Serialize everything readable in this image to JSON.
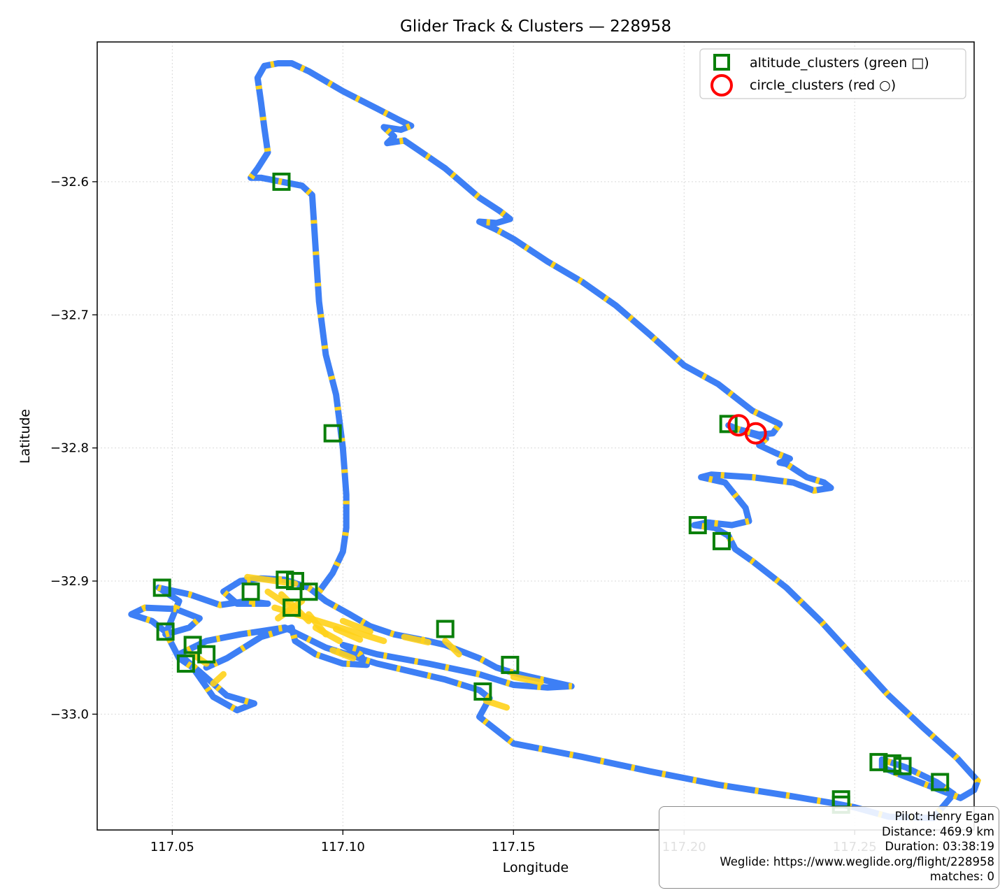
{
  "chart_data": {
    "type": "scatter",
    "title": "Glider Track & Clusters — 228958",
    "xlabel": "Longitude",
    "ylabel": "Latitude",
    "xlim": [
      117.028,
      117.285
    ],
    "ylim": [
      -33.087,
      -32.495
    ],
    "x_ticks": [
      117.05,
      117.1,
      117.15,
      117.2,
      117.25
    ],
    "x_tick_labels": [
      "117.05",
      "117.10",
      "117.15",
      "117.20",
      "117.25"
    ],
    "y_ticks": [
      -32.6,
      -32.7,
      -32.8,
      -32.9,
      -33.0
    ],
    "y_tick_labels": [
      "−32.6",
      "−32.7",
      "−32.8",
      "−32.9",
      "−33.0"
    ],
    "grid": true,
    "legend_position": "top-right",
    "track_colors": {
      "cruise": "#3d7ff5",
      "climb": "#ffd21a"
    },
    "track": [
      [
        117.093,
        -32.908
      ],
      [
        117.097,
        -32.894
      ],
      [
        117.1,
        -32.878
      ],
      [
        117.101,
        -32.86
      ],
      [
        117.101,
        -32.835
      ],
      [
        117.1,
        -32.8
      ],
      [
        117.098,
        -32.76
      ],
      [
        117.095,
        -32.73
      ],
      [
        117.093,
        -32.69
      ],
      [
        117.092,
        -32.65
      ],
      [
        117.091,
        -32.61
      ],
      [
        117.088,
        -32.603
      ],
      [
        117.082,
        -32.6
      ],
      [
        117.076,
        -32.597
      ],
      [
        117.073,
        -32.597
      ],
      [
        117.075,
        -32.59
      ],
      [
        117.078,
        -32.578
      ],
      [
        117.077,
        -32.56
      ],
      [
        117.076,
        -32.54
      ],
      [
        117.075,
        -32.522
      ],
      [
        117.077,
        -32.513
      ],
      [
        117.081,
        -32.511
      ],
      [
        117.085,
        -32.511
      ],
      [
        117.09,
        -32.517
      ],
      [
        117.1,
        -32.532
      ],
      [
        117.11,
        -32.545
      ],
      [
        117.116,
        -32.553
      ],
      [
        117.12,
        -32.558
      ],
      [
        117.117,
        -32.561
      ],
      [
        117.112,
        -32.559
      ],
      [
        117.115,
        -32.566
      ],
      [
        117.113,
        -32.571
      ],
      [
        117.118,
        -32.569
      ],
      [
        117.122,
        -32.576
      ],
      [
        117.13,
        -32.59
      ],
      [
        117.135,
        -32.601
      ],
      [
        117.14,
        -32.612
      ],
      [
        117.146,
        -32.622
      ],
      [
        117.149,
        -32.628
      ],
      [
        117.145,
        -32.631
      ],
      [
        117.14,
        -32.63
      ],
      [
        117.145,
        -32.636
      ],
      [
        117.15,
        -32.643
      ],
      [
        117.16,
        -32.66
      ],
      [
        117.17,
        -32.675
      ],
      [
        117.18,
        -32.693
      ],
      [
        117.19,
        -32.715
      ],
      [
        117.2,
        -32.738
      ],
      [
        117.21,
        -32.752
      ],
      [
        117.22,
        -32.772
      ],
      [
        117.228,
        -32.782
      ],
      [
        117.226,
        -32.789
      ],
      [
        117.222,
        -32.79
      ],
      [
        117.216,
        -32.786
      ],
      [
        117.213,
        -32.783
      ],
      [
        117.218,
        -32.788
      ],
      [
        117.224,
        -32.793
      ],
      [
        117.222,
        -32.798
      ],
      [
        117.227,
        -32.804
      ],
      [
        117.231,
        -32.808
      ],
      [
        117.228,
        -32.811
      ],
      [
        117.23,
        -32.812
      ],
      [
        117.236,
        -32.822
      ],
      [
        117.241,
        -32.826
      ],
      [
        117.243,
        -32.83
      ],
      [
        117.238,
        -32.832
      ],
      [
        117.232,
        -32.826
      ],
      [
        117.22,
        -32.822
      ],
      [
        117.208,
        -32.82
      ],
      [
        117.205,
        -32.822
      ],
      [
        117.212,
        -32.826
      ],
      [
        117.218,
        -32.845
      ],
      [
        117.219,
        -32.855
      ],
      [
        117.214,
        -32.858
      ],
      [
        117.207,
        -32.856
      ],
      [
        117.203,
        -32.858
      ],
      [
        117.209,
        -32.86
      ],
      [
        117.213,
        -32.866
      ],
      [
        117.215,
        -32.876
      ],
      [
        117.22,
        -32.885
      ],
      [
        117.23,
        -32.905
      ],
      [
        117.24,
        -32.93
      ],
      [
        117.25,
        -32.958
      ],
      [
        117.26,
        -32.986
      ],
      [
        117.27,
        -33.01
      ],
      [
        117.28,
        -33.033
      ],
      [
        117.286,
        -33.05
      ],
      [
        117.285,
        -33.057
      ],
      [
        117.281,
        -33.063
      ],
      [
        117.275,
        -33.057
      ],
      [
        117.265,
        -33.047
      ],
      [
        117.258,
        -33.04
      ],
      [
        117.258,
        -33.034
      ],
      [
        117.265,
        -33.04
      ],
      [
        117.274,
        -33.051
      ],
      [
        117.279,
        -33.06
      ],
      [
        117.273,
        -33.078
      ],
      [
        117.26,
        -33.077
      ],
      [
        117.25,
        -33.07
      ],
      [
        117.244,
        -33.067
      ],
      [
        117.23,
        -33.061
      ],
      [
        117.21,
        -33.053
      ],
      [
        117.19,
        -33.043
      ],
      [
        117.17,
        -33.032
      ],
      [
        117.15,
        -33.022
      ],
      [
        117.143,
        -33.008
      ],
      [
        117.14,
        -33.002
      ],
      [
        117.143,
        -32.988
      ],
      [
        117.14,
        -32.982
      ],
      [
        117.13,
        -32.974
      ],
      [
        117.11,
        -32.962
      ],
      [
        117.095,
        -32.95
      ],
      [
        117.083,
        -32.935
      ],
      [
        117.07,
        -32.94
      ],
      [
        117.06,
        -32.945
      ],
      [
        117.052,
        -32.955
      ],
      [
        117.058,
        -32.968
      ],
      [
        117.066,
        -32.986
      ],
      [
        117.074,
        -32.992
      ],
      [
        117.069,
        -32.997
      ],
      [
        117.062,
        -32.987
      ],
      [
        117.056,
        -32.965
      ],
      [
        117.052,
        -32.958
      ],
      [
        117.048,
        -32.938
      ],
      [
        117.044,
        -32.93
      ],
      [
        117.038,
        -32.925
      ],
      [
        117.042,
        -32.92
      ],
      [
        117.051,
        -32.921
      ],
      [
        117.058,
        -32.928
      ],
      [
        117.055,
        -32.935
      ],
      [
        117.048,
        -32.94
      ],
      [
        117.052,
        -32.915
      ],
      [
        117.046,
        -32.905
      ],
      [
        117.055,
        -32.91
      ],
      [
        117.064,
        -32.918
      ],
      [
        117.072,
        -32.915
      ],
      [
        117.078,
        -32.917
      ],
      [
        117.069,
        -32.917
      ],
      [
        117.065,
        -32.908
      ],
      [
        117.07,
        -32.9
      ],
      [
        117.076,
        -32.898
      ],
      [
        117.083,
        -32.899
      ],
      [
        117.09,
        -32.905
      ],
      [
        117.095,
        -32.915
      ],
      [
        117.102,
        -32.925
      ],
      [
        117.108,
        -32.934
      ],
      [
        117.115,
        -32.94
      ],
      [
        117.125,
        -32.945
      ],
      [
        117.13,
        -32.948
      ],
      [
        117.135,
        -32.953
      ],
      [
        117.14,
        -32.958
      ],
      [
        117.145,
        -32.965
      ],
      [
        117.15,
        -32.969
      ],
      [
        117.155,
        -32.972
      ],
      [
        117.16,
        -32.975
      ],
      [
        117.167,
        -32.979
      ],
      [
        117.16,
        -32.98
      ],
      [
        117.15,
        -32.978
      ],
      [
        117.14,
        -32.97
      ],
      [
        117.125,
        -32.962
      ],
      [
        117.11,
        -32.955
      ],
      [
        117.1,
        -32.948
      ],
      [
        117.105,
        -32.955
      ],
      [
        117.107,
        -32.963
      ],
      [
        117.1,
        -32.962
      ],
      [
        117.092,
        -32.955
      ],
      [
        117.086,
        -32.945
      ],
      [
        117.085,
        -32.935
      ],
      [
        117.076,
        -32.942
      ],
      [
        117.066,
        -32.958
      ],
      [
        117.06,
        -32.965
      ]
    ],
    "climb_segments": [
      [
        117.072,
        -32.897
      ],
      [
        117.086,
        -32.902
      ],
      [
        117.088,
        -32.915
      ],
      [
        117.081,
        -32.928
      ],
      [
        117.092,
        -32.935
      ],
      [
        117.099,
        -32.945
      ],
      [
        117.103,
        -32.958
      ],
      [
        117.097,
        -32.952
      ],
      [
        117.085,
        -32.92
      ],
      [
        117.078,
        -32.908
      ],
      [
        117.09,
        -32.925
      ],
      [
        117.095,
        -32.94
      ],
      [
        117.1,
        -32.93
      ],
      [
        117.108,
        -32.938
      ],
      [
        117.112,
        -32.945
      ],
      [
        117.08,
        -32.92
      ],
      [
        117.082,
        -32.91
      ],
      [
        117.09,
        -32.93
      ],
      [
        117.098,
        -32.936
      ],
      [
        117.105,
        -32.944
      ],
      [
        117.056,
        -32.955
      ],
      [
        117.06,
        -32.962
      ],
      [
        117.065,
        -32.97
      ],
      [
        117.062,
        -32.977
      ],
      [
        117.13,
        -32.945
      ],
      [
        117.134,
        -32.955
      ],
      [
        117.15,
        -32.972
      ],
      [
        117.158,
        -32.976
      ],
      [
        117.142,
        -32.99
      ],
      [
        117.148,
        -32.995
      ],
      [
        117.118,
        -32.942
      ],
      [
        117.125,
        -32.946
      ]
    ],
    "series": [
      {
        "name": "altitude_clusters (green □)",
        "marker": "square",
        "color": "#0a7f0a",
        "points": [
          [
            117.082,
            -32.6
          ],
          [
            117.097,
            -32.789
          ],
          [
            117.047,
            -32.905
          ],
          [
            117.048,
            -32.938
          ],
          [
            117.054,
            -32.962
          ],
          [
            117.056,
            -32.948
          ],
          [
            117.06,
            -32.955
          ],
          [
            117.073,
            -32.908
          ],
          [
            117.083,
            -32.899
          ],
          [
            117.086,
            -32.9
          ],
          [
            117.09,
            -32.908
          ],
          [
            117.085,
            -32.92
          ],
          [
            117.13,
            -32.936
          ],
          [
            117.149,
            -32.963
          ],
          [
            117.141,
            -32.983
          ],
          [
            117.213,
            -32.782
          ],
          [
            117.204,
            -32.858
          ],
          [
            117.211,
            -32.87
          ],
          [
            117.257,
            -33.036
          ],
          [
            117.261,
            -33.037
          ],
          [
            117.264,
            -33.039
          ],
          [
            117.275,
            -33.051
          ],
          [
            117.246,
            -33.064
          ],
          [
            117.246,
            -33.068
          ]
        ]
      },
      {
        "name": "circle_clusters (red ○)",
        "marker": "circle",
        "color": "#ff0000",
        "points": [
          [
            117.216,
            -32.783
          ],
          [
            117.221,
            -32.789
          ]
        ]
      }
    ],
    "info_box": {
      "pilot": "Pilot: Henry Egan",
      "distance": "Distance: 469.9 km",
      "duration": "Duration: 03:38:19",
      "weglide": "Weglide: https://www.weglide.org/flight/228958",
      "matches": "matches: 0"
    }
  }
}
